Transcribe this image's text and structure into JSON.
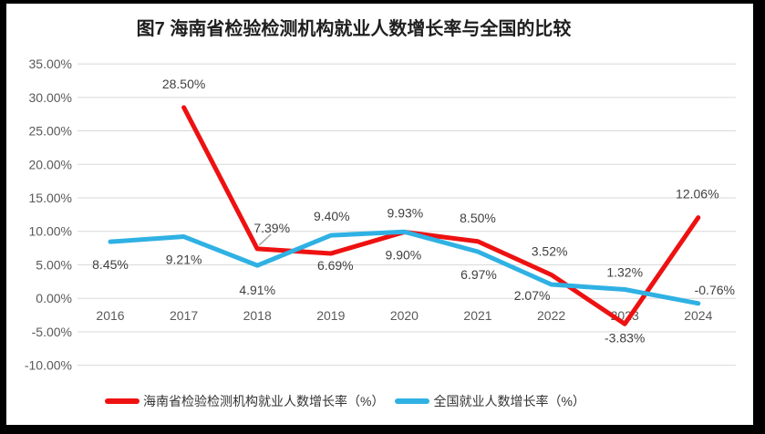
{
  "frame": {
    "background": "#000000",
    "panel_background": "#ffffff"
  },
  "chart_data": {
    "type": "line",
    "title": "图7 海南省检验检测机构就业人数增长率与全国的比较",
    "categories": [
      "2016",
      "2017",
      "2018",
      "2019",
      "2020",
      "2021",
      "2022",
      "2023",
      "2024"
    ],
    "series": [
      {
        "name": "海南省检验检测机构就业人数增长率（%）",
        "color": "#ee1111",
        "values": [
          null,
          28.5,
          7.39,
          6.69,
          9.9,
          8.5,
          3.52,
          -3.83,
          12.06
        ],
        "data_labels": [
          "",
          "28.50%",
          "7.39%",
          "6.69%",
          "9.90%",
          "8.50%",
          "3.52%",
          "-3.83%",
          "12.06%"
        ],
        "label_offsets": [
          [
            0,
            0
          ],
          [
            0,
            -26
          ],
          [
            16,
            -23
          ],
          [
            5,
            13
          ],
          [
            -1,
            25
          ],
          [
            0,
            -26
          ],
          [
            -2,
            -26
          ],
          [
            0,
            15
          ],
          [
            -1,
            -26
          ]
        ],
        "leader_line_at": 2
      },
      {
        "name": "全国就业人数增长率（%）",
        "color": "#2fb1e3",
        "values": [
          8.45,
          9.21,
          4.91,
          9.4,
          9.93,
          6.97,
          2.07,
          1.32,
          -0.76
        ],
        "data_labels": [
          "8.45%",
          "9.21%",
          "4.91%",
          "9.40%",
          "9.93%",
          "6.97%",
          "2.07%",
          "1.32%",
          "-0.76%"
        ],
        "label_offsets": [
          [
            0,
            25
          ],
          [
            0,
            25
          ],
          [
            0,
            27
          ],
          [
            1,
            -21
          ],
          [
            1,
            -21
          ],
          [
            1,
            25
          ],
          [
            -21,
            12
          ],
          [
            0,
            -19
          ],
          [
            18,
            -15
          ]
        ],
        "leader_line_at": null
      }
    ],
    "y_axis": {
      "min": -10,
      "max": 35,
      "step": 5,
      "tick_labels": [
        "35.00%",
        "30.00%",
        "25.00%",
        "20.00%",
        "15.00%",
        "10.00%",
        "5.00%",
        "0.00%",
        "-5.00%",
        "-10.00%"
      ]
    },
    "x_axis": {
      "tick_labels": [
        "2016",
        "2017",
        "2018",
        "2019",
        "2020",
        "2021",
        "2022",
        "2023",
        "2024"
      ]
    },
    "grid": true,
    "legend_position": "bottom",
    "colors": {
      "gridline": "#d9d9d9",
      "tick_text": "#595959",
      "data_label_text": "#404040",
      "title_text": "#1f1f1f",
      "legend_text": "#333333",
      "leader_line": "#a6a6a6"
    }
  }
}
